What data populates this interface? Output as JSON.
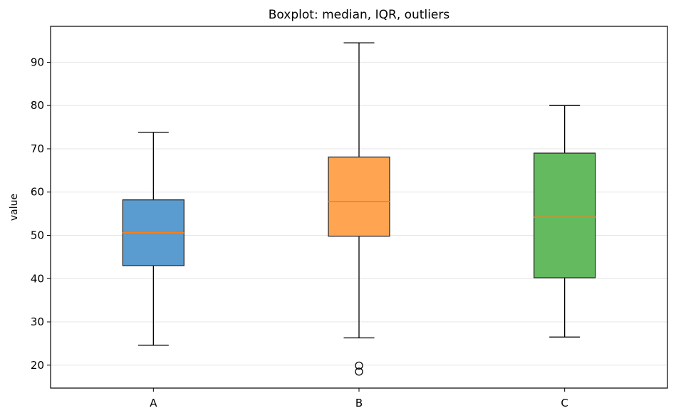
{
  "chart_data": {
    "type": "boxplot",
    "title": "Boxplot: median, IQR, outliers",
    "xlabel": "",
    "ylabel": "value",
    "ylim": [
      14.7,
      98.3
    ],
    "yticks": [
      20,
      30,
      40,
      50,
      60,
      70,
      80,
      90
    ],
    "grid": "horizontal",
    "median_color": "#ff7f0e",
    "categories": [
      "A",
      "B",
      "C"
    ],
    "boxes": [
      {
        "category": "A",
        "whisker_low": 24.6,
        "q1": 43.0,
        "median": 50.6,
        "q3": 58.2,
        "whisker_high": 73.8,
        "outliers": [],
        "color": "#5a9bd0"
      },
      {
        "category": "B",
        "whisker_low": 26.3,
        "q1": 49.8,
        "median": 57.8,
        "q3": 68.1,
        "whisker_high": 94.5,
        "outliers": [
          19.9,
          18.5
        ],
        "color": "#ffa552"
      },
      {
        "category": "C",
        "whisker_low": 26.5,
        "q1": 40.2,
        "median": 54.2,
        "q3": 69.0,
        "whisker_high": 80.0,
        "outliers": [],
        "color": "#64ba5f"
      }
    ]
  }
}
